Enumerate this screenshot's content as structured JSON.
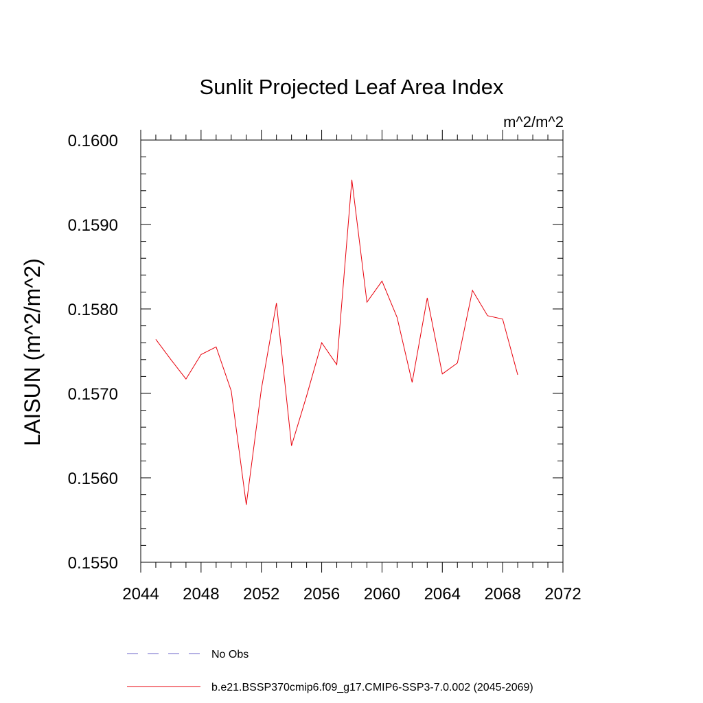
{
  "chart_data": {
    "type": "line",
    "title": "Sunlit Projected Leaf Area Index",
    "units": "m^2/m^2",
    "xlabel": "",
    "ylabel": "LAISUN  (m^2/m^2)",
    "xlim": [
      2044,
      2072
    ],
    "ylim": [
      0.155,
      0.16
    ],
    "x_ticks": [
      2044,
      2048,
      2052,
      2056,
      2060,
      2064,
      2068,
      2072
    ],
    "x_tick_labels": [
      "2044",
      "2048",
      "2052",
      "2056",
      "2060",
      "2064",
      "2068",
      "2072"
    ],
    "y_ticks": [
      0.155,
      0.156,
      0.157,
      0.158,
      0.159,
      0.16
    ],
    "y_tick_labels": [
      "0.1550",
      "0.1560",
      "0.1570",
      "0.1580",
      "0.1590",
      "0.1600"
    ],
    "x_minor_step": 1,
    "y_minor_step": 0.0002,
    "grid": false,
    "legend_position": "bottom",
    "series": [
      {
        "name": "b.e21.BSSP370cmip6.f09_g17.CMIP6-SSP3-7.0.002 (2045-2069)",
        "color": "#e8000b",
        "style": "solid",
        "x": [
          2045,
          2046,
          2047,
          2048,
          2049,
          2050,
          2051,
          2052,
          2053,
          2054,
          2055,
          2056,
          2057,
          2058,
          2059,
          2060,
          2061,
          2062,
          2063,
          2064,
          2065,
          2066,
          2067,
          2068,
          2069
        ],
        "y": [
          0.15764,
          0.1574,
          0.15717,
          0.15746,
          0.15755,
          0.15703,
          0.15568,
          0.15705,
          0.15807,
          0.15638,
          0.15697,
          0.1576,
          0.15734,
          0.15953,
          0.15808,
          0.15833,
          0.1579,
          0.15713,
          0.15813,
          0.15723,
          0.15736,
          0.15822,
          0.15792,
          0.15788,
          0.15722
        ]
      }
    ],
    "legend": [
      {
        "label": "No Obs",
        "color": "#6b63c9",
        "style": "dashed"
      },
      {
        "label": "b.e21.BSSP370cmip6.f09_g17.CMIP6-SSP3-7.0.002 (2045-2069)",
        "color": "#e8000b",
        "style": "solid"
      }
    ]
  }
}
